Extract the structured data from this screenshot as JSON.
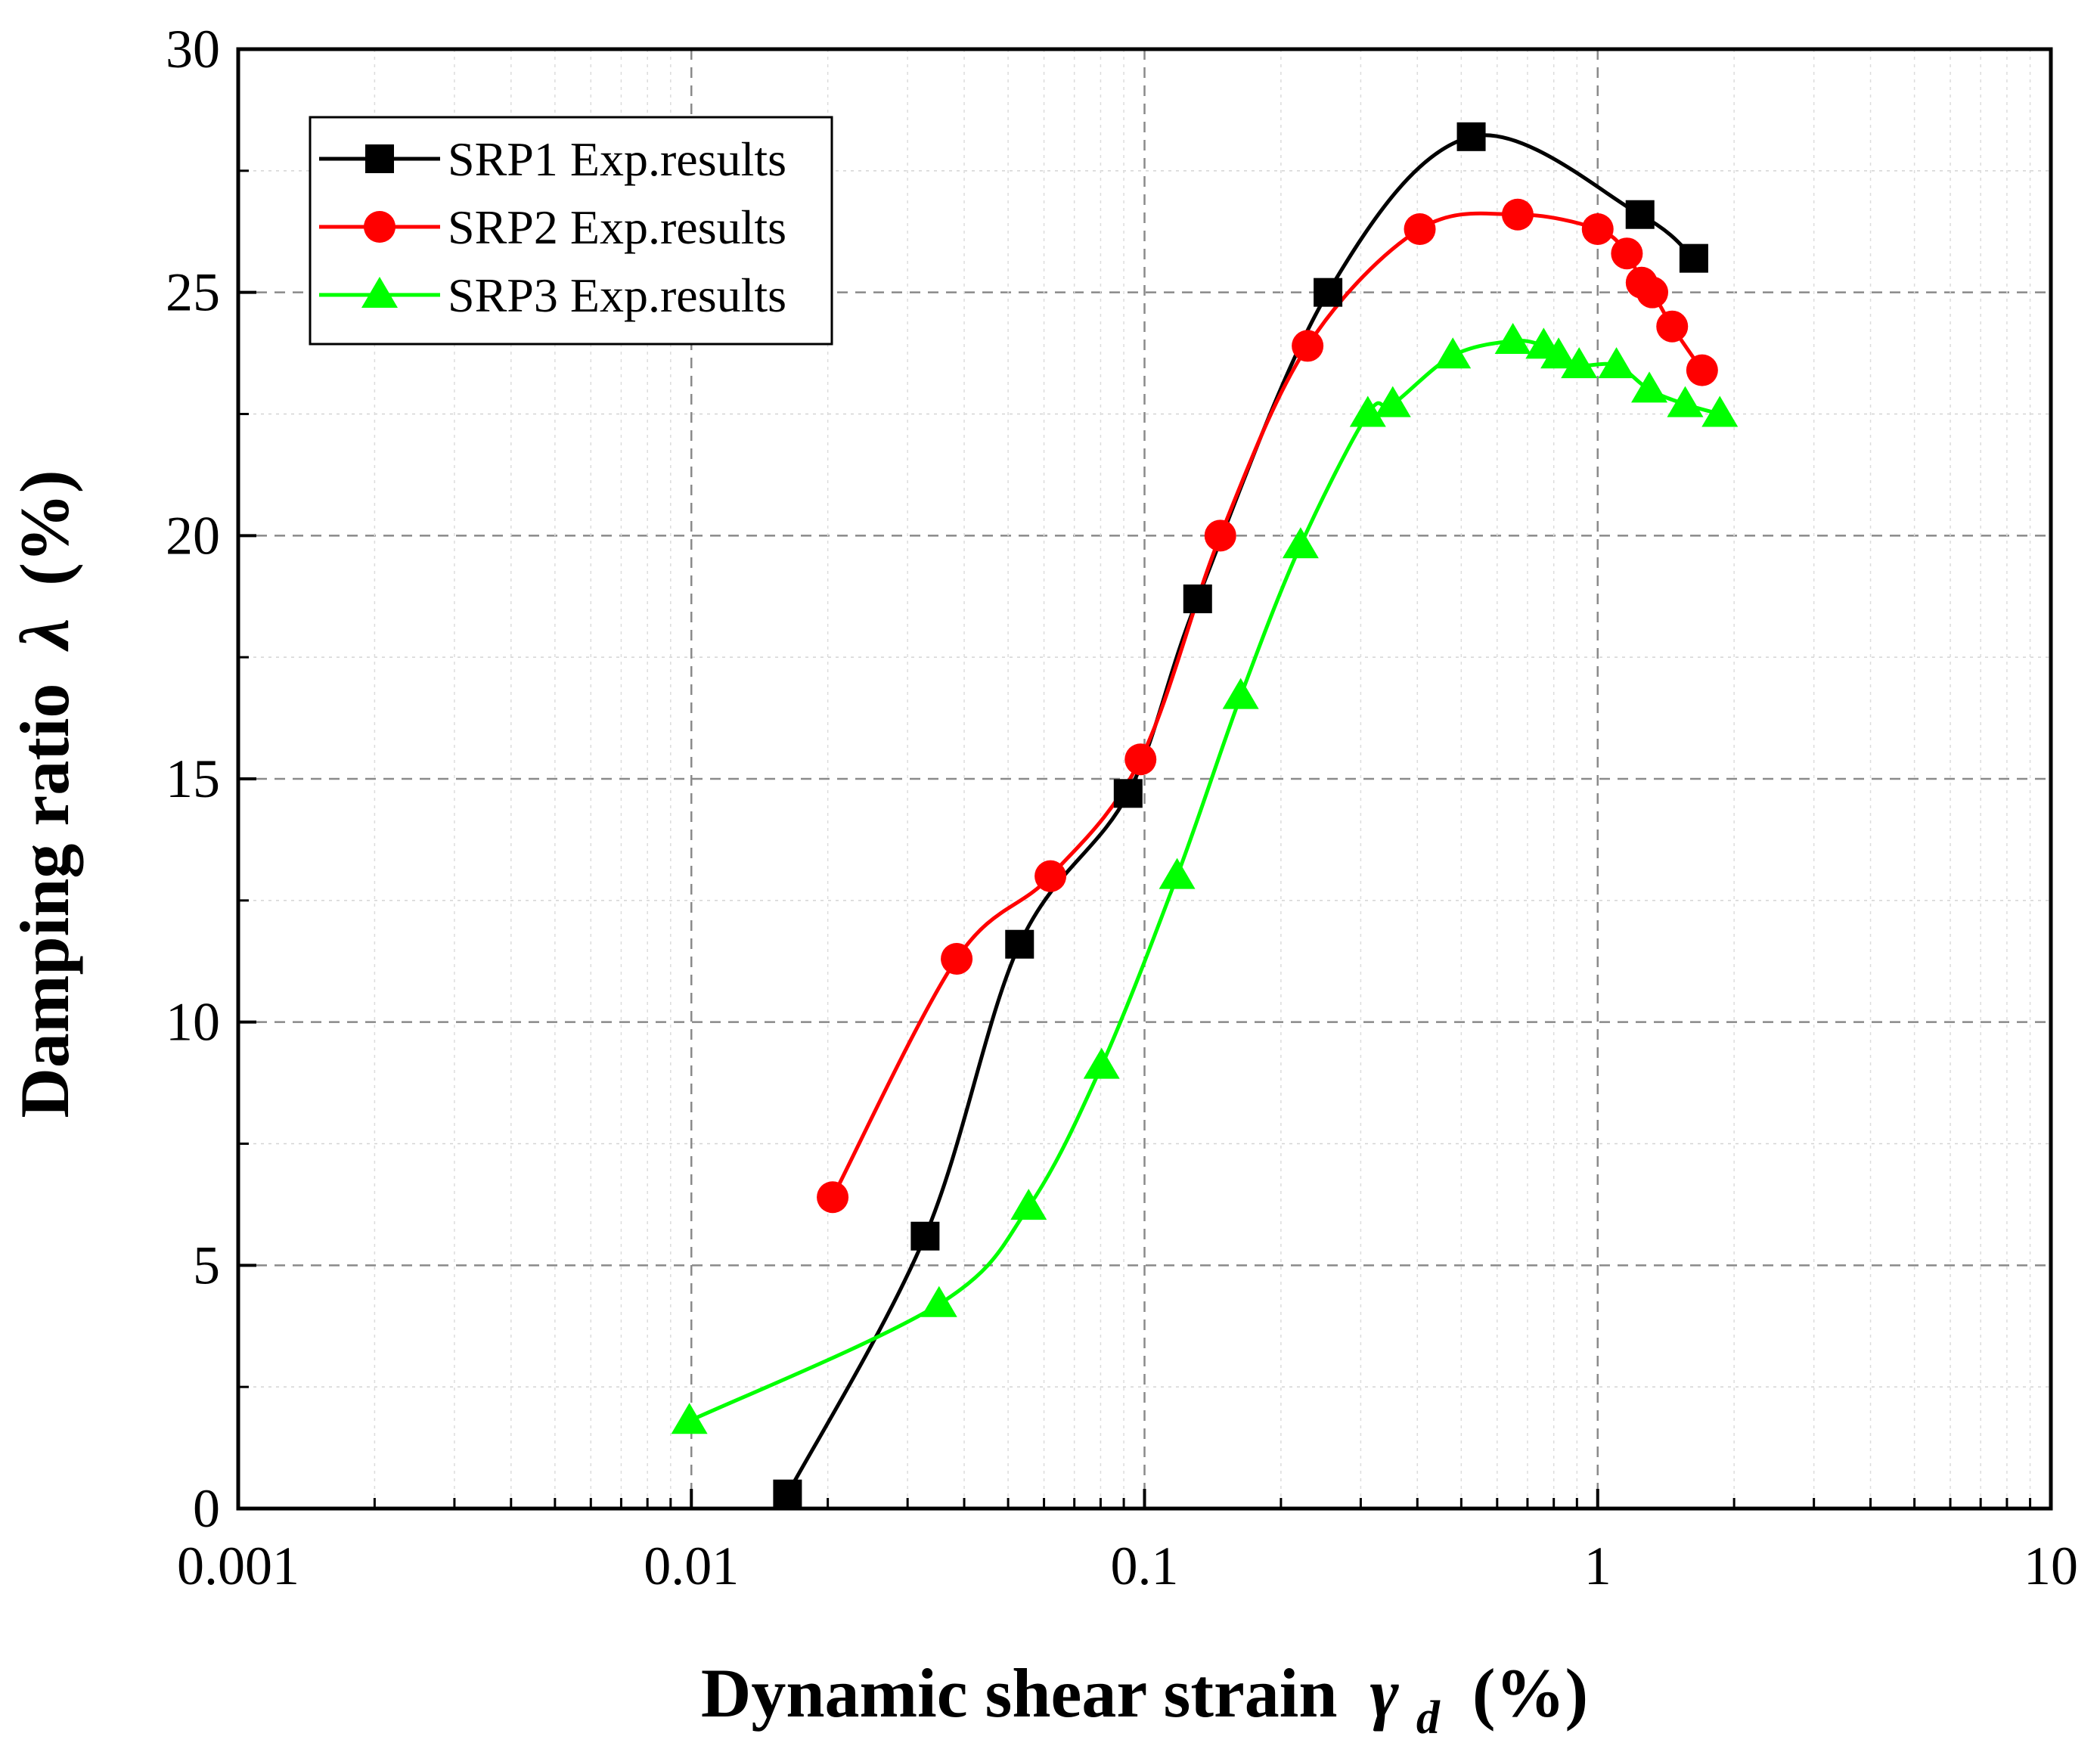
{
  "chart_data": {
    "type": "line",
    "title": "",
    "xlabel": "Dynamic shear strain",
    "xlabel_symbol": "γ",
    "xlabel_subscript": "d",
    "xlabel_unit": "(%)",
    "ylabel": "Damping ratio",
    "ylabel_symbol": "λ",
    "ylabel_unit": "(%)",
    "xscale": "log",
    "xlim": [
      0.001,
      10
    ],
    "ylim": [
      0,
      30
    ],
    "x_ticks": [
      0.001,
      0.01,
      0.1,
      1,
      10
    ],
    "x_tick_labels": [
      "0.001",
      "0.01",
      "0.1",
      "1",
      "10"
    ],
    "y_ticks": [
      0,
      5,
      10,
      15,
      20,
      25,
      30
    ],
    "y_tick_labels": [
      "0",
      "5",
      "10",
      "15",
      "20",
      "25",
      "30"
    ],
    "grid": true,
    "legend_position": "top-left",
    "series": [
      {
        "name": "SRP1 Exp.results",
        "color": "#000000",
        "marker": "square",
        "x": [
          0.0163,
          0.0328,
          0.053,
          0.092,
          0.131,
          0.254,
          0.526,
          1.24,
          1.63
        ],
        "y": [
          0.3,
          5.6,
          11.6,
          14.7,
          18.7,
          25.0,
          28.2,
          26.6,
          25.7
        ]
      },
      {
        "name": "SRP2 Exp.results",
        "color": "#ff0000",
        "marker": "circle",
        "x": [
          0.0205,
          0.0385,
          0.062,
          0.098,
          0.147,
          0.229,
          0.405,
          0.666,
          1.0,
          1.16,
          1.25,
          1.32,
          1.46,
          1.7
        ],
        "y": [
          6.4,
          11.3,
          13.0,
          15.4,
          20.0,
          23.9,
          26.3,
          26.6,
          26.3,
          25.8,
          25.2,
          25.0,
          24.3,
          23.4
        ]
      },
      {
        "name": "SRP3 Exp.results",
        "color": "#00ff00",
        "marker": "triangle",
        "x": [
          0.0099,
          0.0352,
          0.0555,
          0.0804,
          0.118,
          0.163,
          0.221,
          0.311,
          0.353,
          0.479,
          0.65,
          0.76,
          0.82,
          0.91,
          1.1,
          1.3,
          1.56,
          1.86
        ],
        "y": [
          1.8,
          4.2,
          6.2,
          9.1,
          13.0,
          16.7,
          19.8,
          22.5,
          22.7,
          23.7,
          24.0,
          23.9,
          23.7,
          23.5,
          23.5,
          23.0,
          22.7,
          22.5
        ]
      }
    ]
  }
}
